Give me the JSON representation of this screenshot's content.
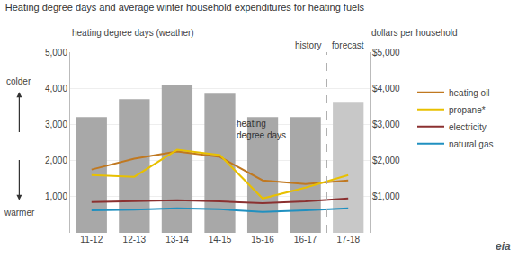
{
  "chart_data": {
    "type": "bar",
    "title": "Heating degree days and average winter household expenditures for heating fuels",
    "ylabel": "heating degree days (weather)",
    "y2label": "dollars per household",
    "categories": [
      "11-12",
      "12-13",
      "13-14",
      "14-15",
      "15-16",
      "16-17",
      "17-18"
    ],
    "series": [
      {
        "type": "bar",
        "values": [
          3200,
          3700,
          4100,
          3850,
          3200,
          3200,
          3600
        ],
        "colors": [
          "#a8a8a8",
          "#a8a8a8",
          "#a8a8a8",
          "#a8a8a8",
          "#a8a8a8",
          "#a8a8a8",
          "#c8c8c8"
        ]
      },
      {
        "name": "heating oil",
        "type": "line",
        "axis": "y2",
        "color": "#c07820",
        "values": [
          1750,
          2050,
          2250,
          2100,
          1450,
          1350,
          1450
        ]
      },
      {
        "name": "propane*",
        "type": "line",
        "axis": "y2",
        "color": "#e8c000",
        "values": [
          1600,
          1550,
          2300,
          2150,
          950,
          1250,
          1600
        ]
      },
      {
        "name": "electricity",
        "type": "line",
        "axis": "y2",
        "color": "#8b3030",
        "values": [
          850,
          880,
          900,
          870,
          820,
          870,
          950
        ]
      },
      {
        "name": "natural gas",
        "type": "line",
        "axis": "y2",
        "color": "#2090c0",
        "values": [
          620,
          640,
          680,
          650,
          580,
          620,
          680
        ]
      }
    ],
    "ylim": [
      0,
      5000
    ],
    "yticks": [
      {
        "value": 1000,
        "label": "1,000"
      },
      {
        "value": 2000,
        "label": "2,000"
      },
      {
        "value": 3000,
        "label": "3,000"
      },
      {
        "value": 4000,
        "label": "4,000"
      },
      {
        "value": 5000,
        "label": "5,000"
      }
    ],
    "y2lim": [
      0,
      5000
    ],
    "y2ticks": [
      {
        "value": 1000,
        "label": "$1,000"
      },
      {
        "value": 2000,
        "label": "$2,000"
      },
      {
        "value": 3000,
        "label": "$3,000"
      },
      {
        "value": 4000,
        "label": "$4,000"
      },
      {
        "value": 5000,
        "label": "$5,000"
      }
    ],
    "grid": true,
    "annotations": [
      "heating\ndegree days",
      "history",
      "forecast",
      "colder",
      "warmer",
      "eia"
    ]
  }
}
